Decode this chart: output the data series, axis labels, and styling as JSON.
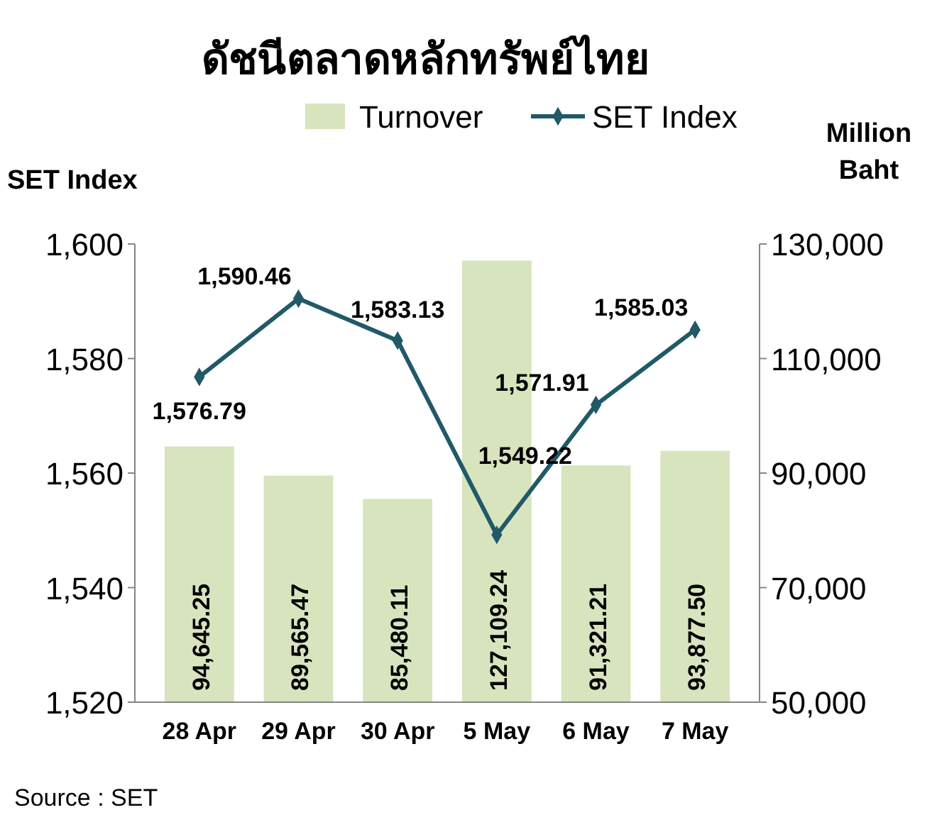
{
  "chart_data": {
    "type": "bar",
    "title": "ดัชนีตลาดหลักทรัพย์ไทย",
    "ylabel": "SET Index",
    "y2label": "Million Baht",
    "categories": [
      "28 Apr",
      "29 Apr",
      "30 Apr",
      "5 May",
      "6 May",
      "7 May"
    ],
    "series": [
      {
        "name": "Turnover",
        "axis": "y2",
        "color": "#d7e4bd",
        "values": [
          94645.25,
          89565.47,
          85480.11,
          127109.24,
          91321.21,
          93877.5
        ],
        "value_labels": [
          "94,645.25",
          "89,565.47",
          "85,480.11",
          "127,109.24",
          "91,321.21",
          "93,877.50"
        ]
      },
      {
        "name": "SET Index",
        "type": "line",
        "axis": "y",
        "color": "#215968",
        "values": [
          1576.79,
          1590.46,
          1583.13,
          1549.22,
          1571.91,
          1585.03
        ],
        "value_labels": [
          "1,576.79",
          "1,590.46",
          "1,583.13",
          "1,549.22",
          "1,571.91",
          "1,585.03"
        ]
      }
    ],
    "ylim": [
      1520,
      1600
    ],
    "yticks": [
      {
        "value": 1520,
        "label": "1,520"
      },
      {
        "value": 1540,
        "label": "1,540"
      },
      {
        "value": 1560,
        "label": "1,560"
      },
      {
        "value": 1580,
        "label": "1,580"
      },
      {
        "value": 1600,
        "label": "1,600"
      }
    ],
    "y2lim": [
      50000,
      130000
    ],
    "y2ticks": [
      {
        "value": 50000,
        "label": "50,000"
      },
      {
        "value": 70000,
        "label": "70,000"
      },
      {
        "value": 90000,
        "label": "90,000"
      },
      {
        "value": 110000,
        "label": "110,000"
      },
      {
        "value": 130000,
        "label": "130,000"
      }
    ],
    "legend": "top",
    "marker": "diamond",
    "line_style": "solid",
    "annotations": [
      "Source : SET"
    ]
  }
}
